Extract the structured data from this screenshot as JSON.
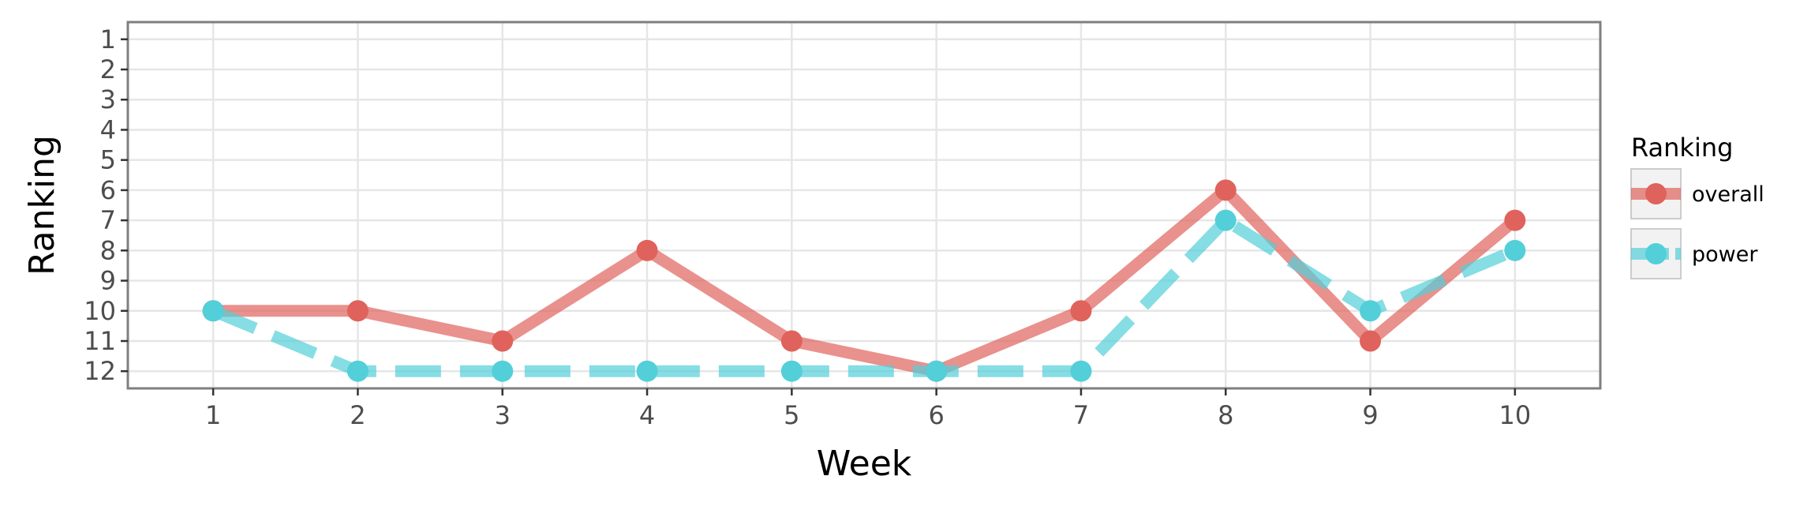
{
  "chart_data": {
    "type": "line",
    "xlabel": "Week",
    "ylabel": "Ranking",
    "x": [
      1,
      2,
      3,
      4,
      5,
      6,
      7,
      8,
      9,
      10
    ],
    "x_ticks": [
      "1",
      "2",
      "3",
      "4",
      "5",
      "6",
      "7",
      "8",
      "9",
      "10"
    ],
    "y_ticks": [
      "1",
      "2",
      "3",
      "4",
      "5",
      "6",
      "7",
      "8",
      "9",
      "10",
      "11",
      "12"
    ],
    "xlim": [
      0.41,
      10.59
    ],
    "ylim": [
      12.57,
      0.43
    ],
    "y_reversed": true,
    "grid": true,
    "legend": {
      "title": "Ranking",
      "placement": "right"
    },
    "series": [
      {
        "name": "overall",
        "color": "#e0625c",
        "line_style": "solid",
        "values": [
          10,
          10,
          11,
          8,
          11,
          12,
          10,
          6,
          11,
          7
        ]
      },
      {
        "name": "power",
        "color": "#53cfd9",
        "line_style": "dashed",
        "values": [
          10,
          12,
          12,
          12,
          12,
          12,
          12,
          7,
          10,
          8
        ]
      }
    ]
  }
}
